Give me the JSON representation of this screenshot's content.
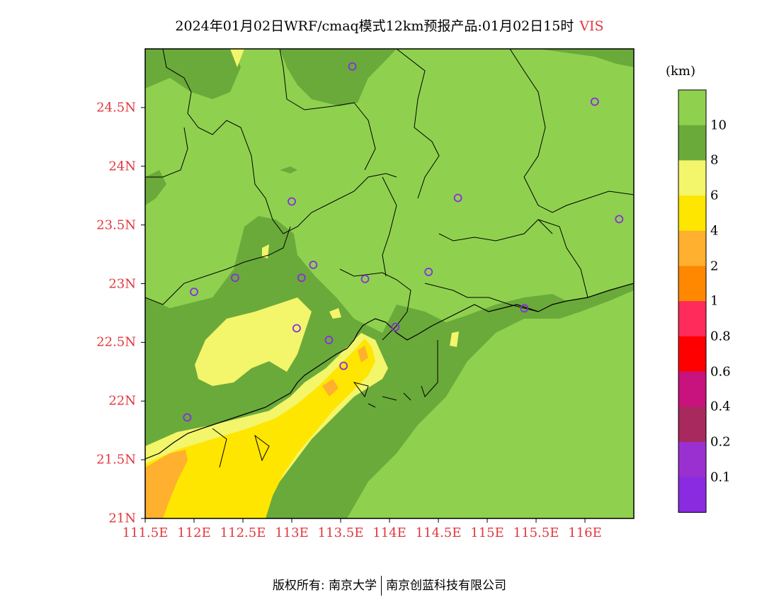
{
  "header": {
    "title": "2024年01月02日WRF/cmaq模式12km预报产品:01月02日15时",
    "variable": "VIS"
  },
  "map": {
    "lat_range": [
      21,
      25
    ],
    "lon_range": [
      111.5,
      116.5
    ],
    "lat_ticks": [
      {
        "value": 24.5,
        "label": "24.5N"
      },
      {
        "value": 24,
        "label": "24N"
      },
      {
        "value": 23.5,
        "label": "23.5N"
      },
      {
        "value": 23,
        "label": "23N"
      },
      {
        "value": 22.5,
        "label": "22.5N"
      },
      {
        "value": 22,
        "label": "22N"
      },
      {
        "value": 21.5,
        "label": "21.5N"
      },
      {
        "value": 21,
        "label": "21N"
      }
    ],
    "lon_ticks": [
      {
        "value": 111.5,
        "label": "111.5E"
      },
      {
        "value": 112,
        "label": "112E"
      },
      {
        "value": 112.5,
        "label": "112.5E"
      },
      {
        "value": 113,
        "label": "113E"
      },
      {
        "value": 113.5,
        "label": "113.5E"
      },
      {
        "value": 114,
        "label": "114E"
      },
      {
        "value": 114.5,
        "label": "114.5E"
      },
      {
        "value": 115,
        "label": "115E"
      },
      {
        "value": 115.5,
        "label": "115.5E"
      },
      {
        "value": 116,
        "label": "116E"
      }
    ],
    "stations": [
      {
        "lon": 113.62,
        "lat": 24.85
      },
      {
        "lon": 116.1,
        "lat": 24.55
      },
      {
        "lon": 113.0,
        "lat": 23.7
      },
      {
        "lon": 114.7,
        "lat": 23.73
      },
      {
        "lon": 116.35,
        "lat": 23.55
      },
      {
        "lon": 113.22,
        "lat": 23.16
      },
      {
        "lon": 112.42,
        "lat": 23.05
      },
      {
        "lon": 113.1,
        "lat": 23.05
      },
      {
        "lon": 113.75,
        "lat": 23.04
      },
      {
        "lon": 114.4,
        "lat": 23.1
      },
      {
        "lon": 112.0,
        "lat": 22.93
      },
      {
        "lon": 115.38,
        "lat": 22.79
      },
      {
        "lon": 113.05,
        "lat": 22.62
      },
      {
        "lon": 114.06,
        "lat": 22.63
      },
      {
        "lon": 113.38,
        "lat": 22.52
      },
      {
        "lon": 113.53,
        "lat": 22.3
      },
      {
        "lon": 111.93,
        "lat": 21.86
      }
    ],
    "colors": {
      "over10": "#8fd14f",
      "8to10": "#6aaa3a",
      "6to8": "#f3f56b",
      "4to6": "#ffe600",
      "2to4": "#ffb02e",
      "1to2": "#ff8800",
      "station": "#8a2be2"
    }
  },
  "colorbar": {
    "unit": "(km)",
    "segments": [
      "#8fd14f",
      "#6aaa3a",
      "#f3f56b",
      "#ffe600",
      "#ffb02e",
      "#ff8800",
      "#ff2b5a",
      "#ff0000",
      "#c8127d",
      "#a8295e",
      "#9b30d0",
      "#8a2be2"
    ],
    "labels": [
      "10",
      "8",
      "6",
      "4",
      "2",
      "1",
      "0.8",
      "0.6",
      "0.4",
      "0.2",
      "0.1"
    ]
  },
  "footer": {
    "left": "版权所有: 南京大学",
    "right": "南京创蓝科技有限公司"
  }
}
